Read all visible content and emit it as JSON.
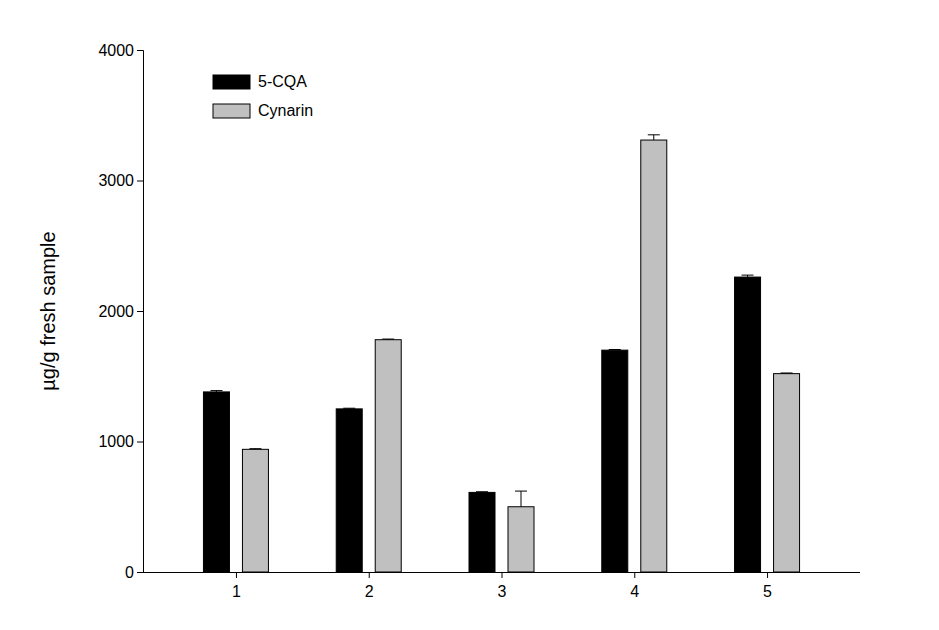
{
  "chart_data": {
    "type": "bar",
    "y_label": "µg/g fresh sample",
    "categories": [
      "1",
      "2",
      "3",
      "4",
      "5"
    ],
    "series": [
      {
        "name": "5-CQA",
        "color": "#000000",
        "values": [
          1380,
          1250,
          610,
          1700,
          2260
        ],
        "errors": [
          10,
          5,
          5,
          5,
          15
        ]
      },
      {
        "name": "Cynarin",
        "color": "#c0c0c0",
        "values": [
          940,
          1780,
          500,
          3310,
          1520
        ],
        "errors": [
          5,
          5,
          120,
          40,
          5
        ]
      }
    ],
    "ylim": [
      0,
      4000
    ],
    "yticks": [
      0,
      1000,
      2000,
      3000,
      4000
    ],
    "legend": "upper left",
    "grid": false
  }
}
